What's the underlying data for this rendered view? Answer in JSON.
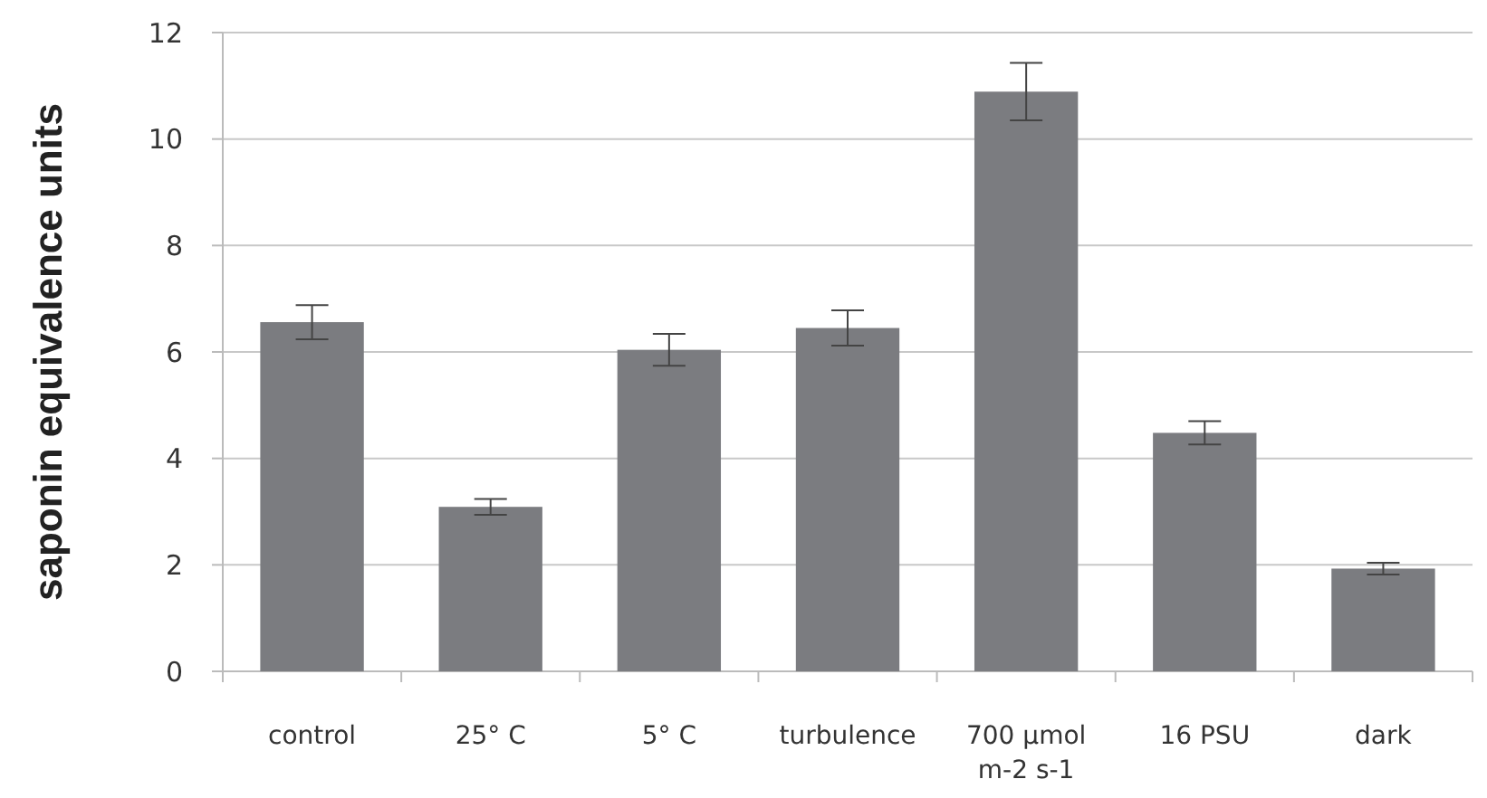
{
  "chart_data": {
    "type": "bar",
    "ylabel": "saponin equivalence units",
    "categories": [
      "control",
      "25° C",
      "5° C",
      "turbulence",
      "700 µmol m-2 s-1",
      "16 PSU",
      "dark"
    ],
    "values": [
      6.56,
      3.09,
      6.04,
      6.45,
      10.89,
      4.48,
      1.93
    ],
    "errors": [
      0.32,
      0.15,
      0.3,
      0.33,
      0.54,
      0.22,
      0.11
    ],
    "color": "#7b7c80",
    "ylim": [
      0,
      12
    ],
    "yticks": [
      0,
      2,
      4,
      6,
      8,
      10,
      12
    ],
    "grid": "y"
  }
}
